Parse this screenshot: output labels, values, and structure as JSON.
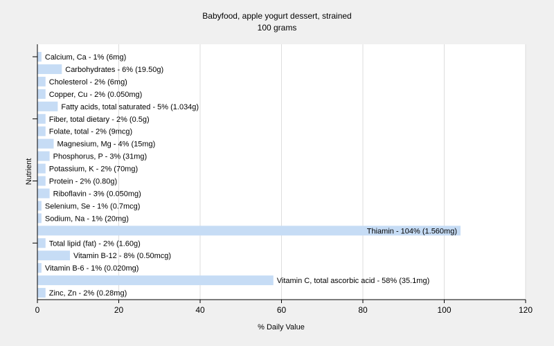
{
  "chart_data": {
    "type": "bar",
    "orientation": "horizontal",
    "title": "Babyfood, apple yogurt dessert, strained",
    "subtitle": "100 grams",
    "xlabel": "% Daily Value",
    "ylabel": "Nutrient",
    "xlim": [
      0,
      120
    ],
    "xticks": [
      0,
      20,
      40,
      60,
      80,
      100,
      120
    ],
    "grid": true,
    "bar_color": "#c6dcf5",
    "bars": [
      {
        "label": "Calcium, Ca - 1% (6mg)",
        "value": 1
      },
      {
        "label": "Carbohydrates - 6% (19.50g)",
        "value": 6
      },
      {
        "label": "Cholesterol - 2% (6mg)",
        "value": 2
      },
      {
        "label": "Copper, Cu - 2% (0.050mg)",
        "value": 2
      },
      {
        "label": "Fatty acids, total saturated - 5% (1.034g)",
        "value": 5
      },
      {
        "label": "Fiber, total dietary - 2% (0.5g)",
        "value": 2
      },
      {
        "label": "Folate, total - 2% (9mcg)",
        "value": 2
      },
      {
        "label": "Magnesium, Mg - 4% (15mg)",
        "value": 4
      },
      {
        "label": "Phosphorus, P - 3% (31mg)",
        "value": 3
      },
      {
        "label": "Potassium, K - 2% (70mg)",
        "value": 2
      },
      {
        "label": "Protein - 2% (0.80g)",
        "value": 2
      },
      {
        "label": "Riboflavin - 3% (0.050mg)",
        "value": 3
      },
      {
        "label": "Selenium, Se - 1% (0.7mcg)",
        "value": 1
      },
      {
        "label": "Sodium, Na - 1% (20mg)",
        "value": 1
      },
      {
        "label": "Thiamin - 104% (1.560mg)",
        "value": 104
      },
      {
        "label": "Total lipid (fat) - 2% (1.60g)",
        "value": 2
      },
      {
        "label": "Vitamin B-12 - 8% (0.50mcg)",
        "value": 8
      },
      {
        "label": "Vitamin B-6 - 1% (0.020mg)",
        "value": 1
      },
      {
        "label": "Vitamin C, total ascorbic acid - 58% (35.1mg)",
        "value": 58
      },
      {
        "label": "Zinc, Zn - 2% (0.28mg)",
        "value": 2
      }
    ]
  }
}
